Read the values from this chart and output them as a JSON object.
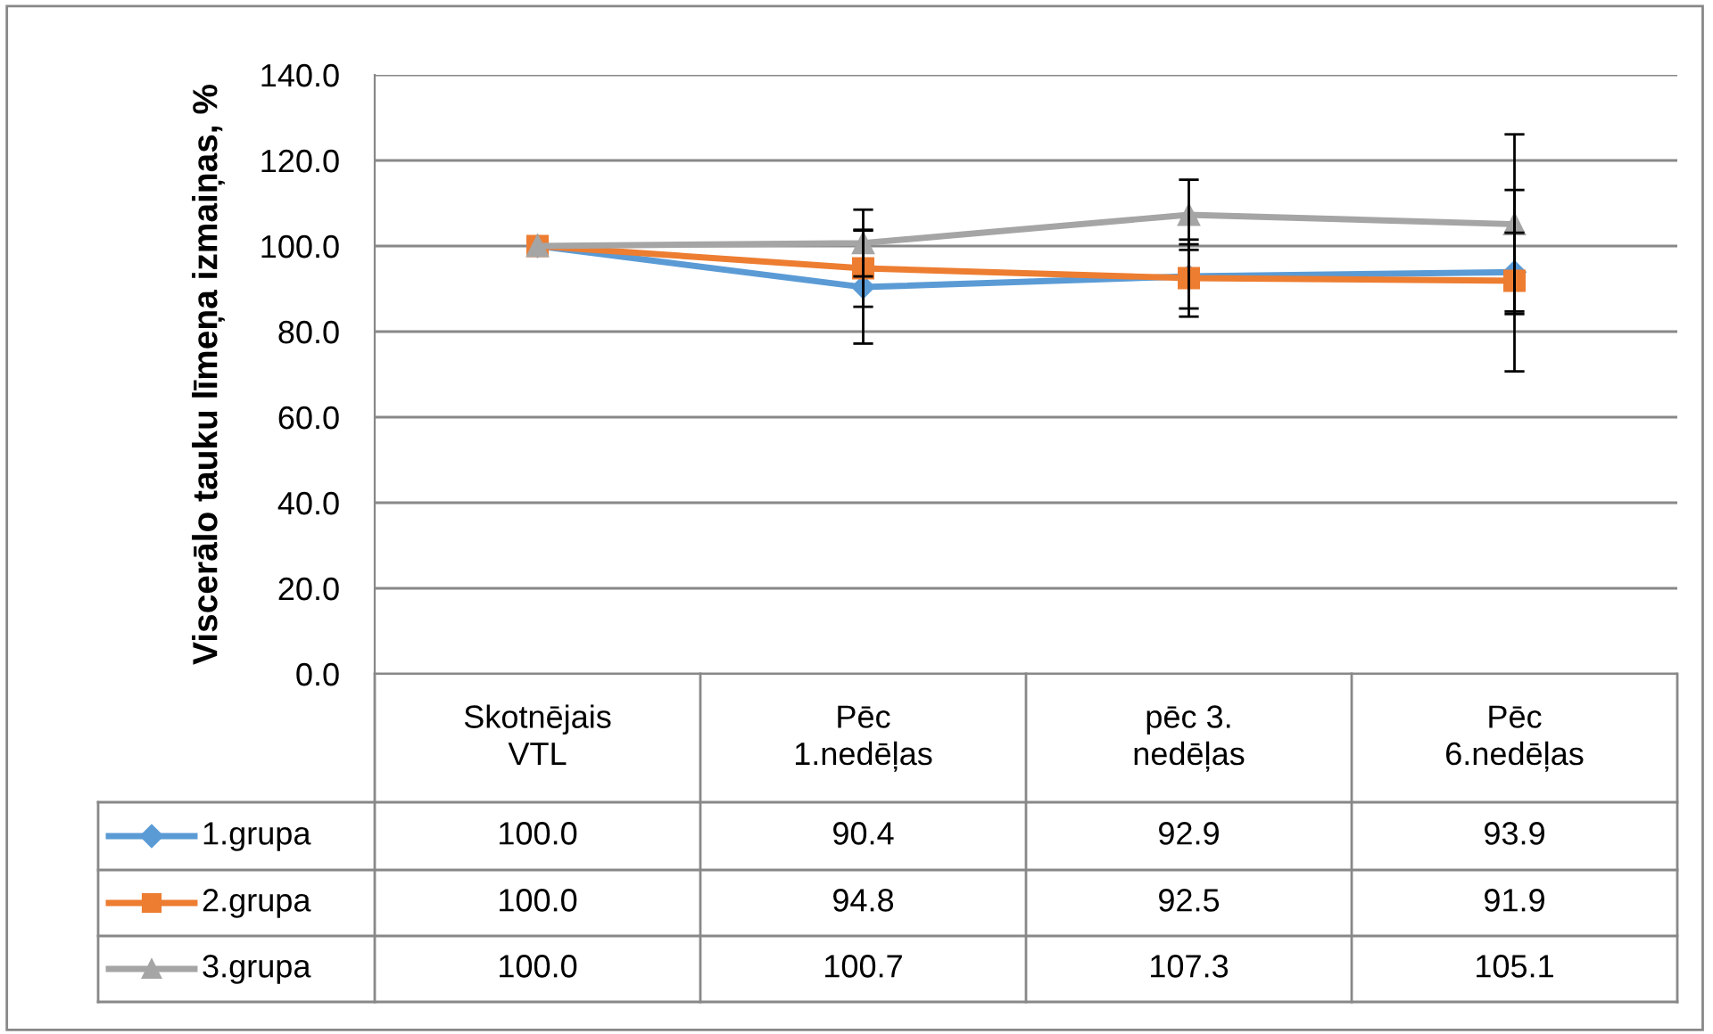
{
  "chart_data": {
    "type": "line",
    "ylabel": "Viscerālo tauku līmeņa izmaiņas, %",
    "categories": [
      "Skotnējais\nVTL",
      "Pēc\n1.nedēļas",
      "pēc 3.\nnedēļas",
      "Pēc\n6.nedēļas"
    ],
    "series": [
      {
        "name": "1.grupa",
        "color": "#5b9bd5",
        "marker": "diamond",
        "values": [
          100.0,
          90.4,
          92.9,
          93.9
        ],
        "value_labels": [
          "100.0",
          "90.4",
          "92.9",
          "93.9"
        ],
        "errors": [
          null,
          13.2,
          7.5,
          9.2
        ]
      },
      {
        "name": "2.grupa",
        "color": "#ed7d31",
        "marker": "square",
        "values": [
          100.0,
          94.8,
          92.5,
          91.9
        ],
        "value_labels": [
          "100.0",
          "94.8",
          "92.5",
          "91.9"
        ],
        "errors": [
          null,
          9.0,
          9.0,
          21.2
        ]
      },
      {
        "name": "3.grupa",
        "color": "#a5a5a5",
        "marker": "triangle",
        "values": [
          100.0,
          100.7,
          107.3,
          105.1
        ],
        "value_labels": [
          "100.0",
          "100.7",
          "107.3",
          "105.1"
        ],
        "errors": [
          null,
          7.8,
          8.2,
          21.0
        ]
      }
    ],
    "ylim": [
      0,
      140
    ],
    "yticks": [
      {
        "value": 0,
        "label": "0.0"
      },
      {
        "value": 20,
        "label": "20.0"
      },
      {
        "value": 40,
        "label": "40.0"
      },
      {
        "value": 60,
        "label": "60.0"
      },
      {
        "value": 80,
        "label": "80.0"
      },
      {
        "value": 100,
        "label": "100.0"
      },
      {
        "value": 120,
        "label": "120.0"
      },
      {
        "value": 140,
        "label": "140.0"
      }
    ],
    "grid": "y",
    "legend": "bottom",
    "line_style": "solid"
  }
}
